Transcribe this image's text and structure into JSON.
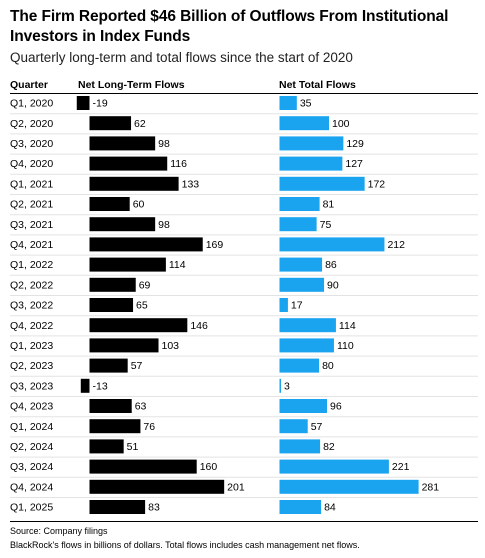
{
  "chart_data": {
    "type": "bar",
    "title": "The Firm Reported $46 Billion of Outflows From Institutional Investors in Index Funds",
    "subtitle": "Quarterly long-term and total flows since the start of 2020",
    "column_header": "Quarter",
    "categories": [
      "Q1, 2020",
      "Q2, 2020",
      "Q3, 2020",
      "Q4, 2020",
      "Q1, 2021",
      "Q2, 2021",
      "Q3, 2021",
      "Q4, 2021",
      "Q1, 2022",
      "Q2, 2022",
      "Q3, 2022",
      "Q4, 2022",
      "Q1, 2023",
      "Q2, 2023",
      "Q3, 2023",
      "Q4, 2023",
      "Q1, 2024",
      "Q2, 2024",
      "Q3, 2024",
      "Q4, 2024",
      "Q1, 2025"
    ],
    "series": [
      {
        "name": "Net Long-Term Flows",
        "color": "#000000",
        "values": [
          -19,
          62,
          98,
          116,
          133,
          60,
          98,
          169,
          114,
          69,
          65,
          146,
          103,
          57,
          -13,
          63,
          76,
          51,
          160,
          201,
          83
        ]
      },
      {
        "name": "Net Total Flows",
        "color": "#1aa3ef",
        "values": [
          35,
          100,
          129,
          127,
          172,
          81,
          75,
          212,
          86,
          90,
          17,
          114,
          110,
          80,
          3,
          96,
          57,
          82,
          221,
          281,
          84
        ]
      }
    ],
    "source": "Source: Company filings",
    "note": "BlackRock's flows in billions of dollars. Total flows includes cash management net flows."
  }
}
